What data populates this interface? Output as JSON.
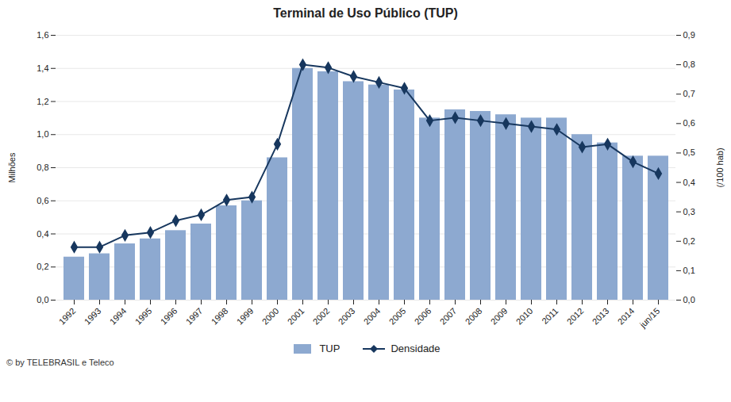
{
  "chart_data": {
    "type": "bar",
    "title": "Terminal de Uso Público (TUP)",
    "categories": [
      "1992",
      "1993",
      "1994",
      "1995",
      "1996",
      "1997",
      "1998",
      "1999",
      "2000",
      "2001",
      "2002",
      "2003",
      "2004",
      "2005",
      "2006",
      "2007",
      "2008",
      "2009",
      "2010",
      "2011",
      "2012",
      "2013",
      "2014",
      "jun/15"
    ],
    "series": [
      {
        "name": "TUP",
        "type": "bar",
        "color": "#8DA9D0",
        "values": [
          0.26,
          0.28,
          0.34,
          0.37,
          0.42,
          0.46,
          0.57,
          0.6,
          0.86,
          1.4,
          1.38,
          1.32,
          1.3,
          1.27,
          1.1,
          1.15,
          1.14,
          1.12,
          1.1,
          1.1,
          1.0,
          0.95,
          0.87,
          0.87
        ]
      },
      {
        "name": "Densidade",
        "type": "line",
        "color": "#17375E",
        "marker": "diamond",
        "axis": "y2",
        "values": [
          0.18,
          0.18,
          0.22,
          0.23,
          0.27,
          0.29,
          0.34,
          0.35,
          0.53,
          0.8,
          0.79,
          0.76,
          0.74,
          0.72,
          0.61,
          0.62,
          0.61,
          0.6,
          0.59,
          0.58,
          0.52,
          0.53,
          0.47,
          0.43
        ]
      }
    ],
    "ylabel": "Milhões",
    "y2label": "(/100 hab)",
    "ylim": [
      0,
      1.6
    ],
    "yticks": [
      {
        "value": 0.0,
        "label": "0,0"
      },
      {
        "value": 0.2,
        "label": "0,2"
      },
      {
        "value": 0.4,
        "label": "0,4"
      },
      {
        "value": 0.6,
        "label": "0,6"
      },
      {
        "value": 0.8,
        "label": "0,8"
      },
      {
        "value": 1.0,
        "label": "1,0"
      },
      {
        "value": 1.2,
        "label": "1,2"
      },
      {
        "value": 1.4,
        "label": "1,4"
      },
      {
        "value": 1.6,
        "label": "1,6"
      }
    ],
    "y2lim": [
      0,
      0.9
    ],
    "y2ticks": [
      {
        "value": 0.0,
        "label": "0,0"
      },
      {
        "value": 0.1,
        "label": "0,1"
      },
      {
        "value": 0.2,
        "label": "0,2"
      },
      {
        "value": 0.3,
        "label": "0,3"
      },
      {
        "value": 0.4,
        "label": "0,4"
      },
      {
        "value": 0.5,
        "label": "0,5"
      },
      {
        "value": 0.6,
        "label": "0,6"
      },
      {
        "value": 0.7,
        "label": "0,7"
      },
      {
        "value": 0.8,
        "label": "0,8"
      },
      {
        "value": 0.9,
        "label": "0,9"
      }
    ],
    "grid": true,
    "legend": "bottom",
    "annotations": [
      "© by TELEBRASIL e Teleco"
    ]
  }
}
